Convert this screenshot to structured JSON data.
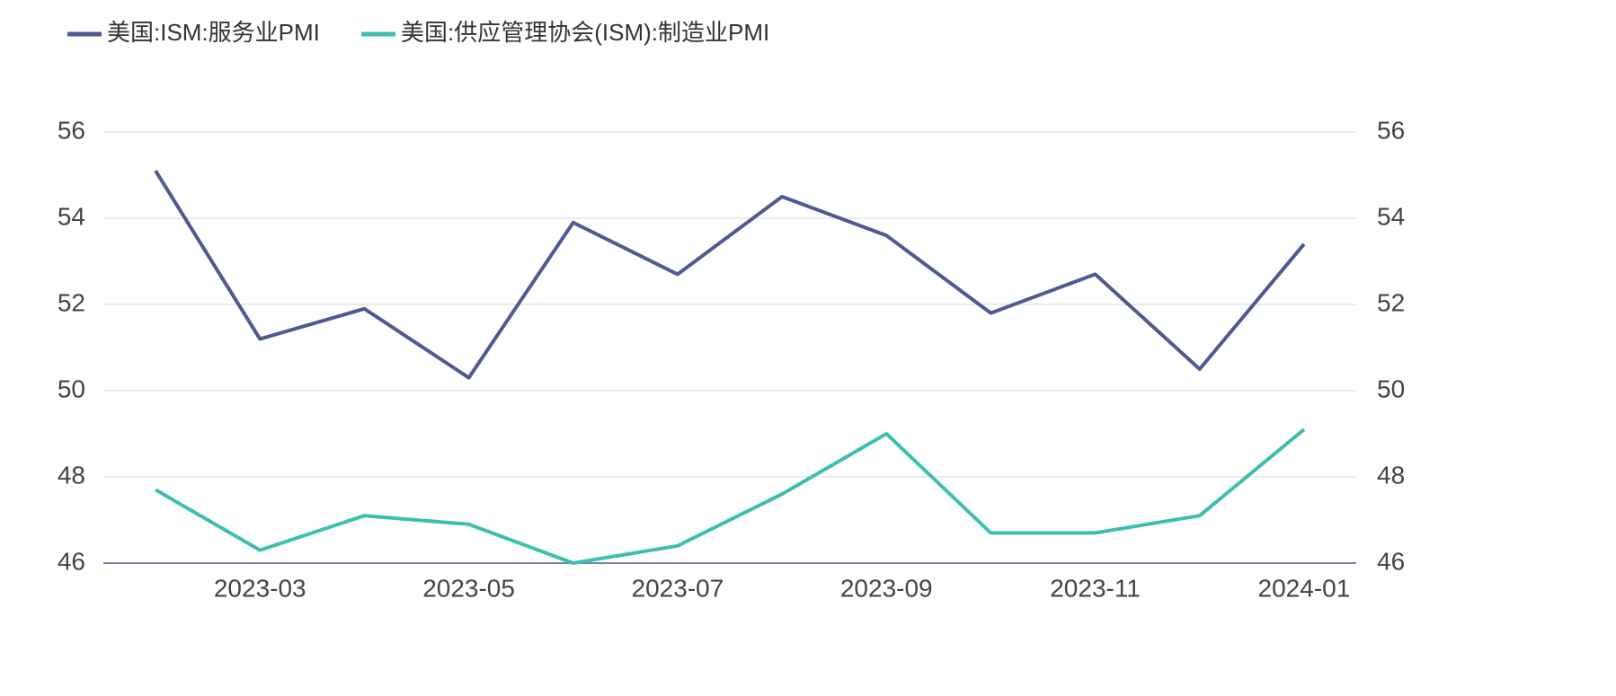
{
  "chart_data": {
    "type": "line",
    "x": [
      null,
      "2023-03",
      null,
      "2023-05",
      null,
      "2023-07",
      null,
      "2023-09",
      null,
      "2023-11",
      null,
      "2024-01"
    ],
    "series": [
      {
        "name": "美国:ISM:服务业PMI",
        "color": "#4f5a93",
        "values": [
          55.1,
          51.2,
          51.9,
          50.3,
          53.9,
          52.7,
          54.5,
          53.6,
          51.8,
          52.7,
          50.5,
          53.4
        ]
      },
      {
        "name": "美国:供应管理协会(ISM):制造业PMI",
        "color": "#3dbfae",
        "values": [
          47.7,
          46.3,
          47.1,
          46.9,
          46.0,
          46.4,
          47.6,
          49.0,
          46.7,
          46.7,
          47.1,
          49.1
        ]
      }
    ],
    "ylim": [
      46,
      56
    ],
    "yticks": [
      46,
      48,
      50,
      52,
      54,
      56
    ],
    "y2lim": [
      46,
      56
    ],
    "y2ticks": [
      46,
      48,
      50,
      52,
      54,
      56
    ],
    "grid": true
  }
}
